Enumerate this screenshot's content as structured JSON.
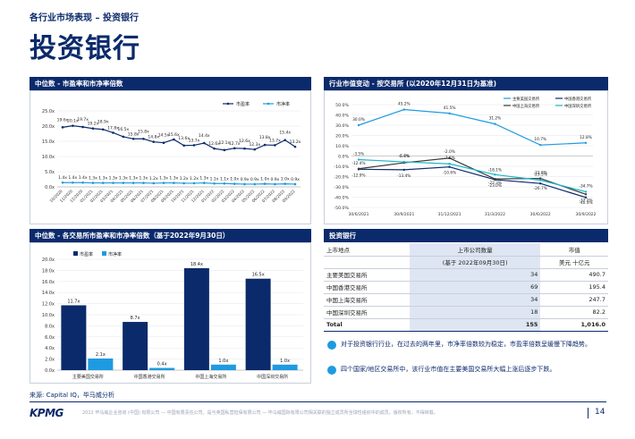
{
  "header": {
    "subtitle": "各行业市场表现 – 投资银行",
    "title": "投资银行"
  },
  "colors": {
    "navy": "#0b2a6b",
    "blue": "#1e9be0",
    "light": "#dfe6f3"
  },
  "panels": {
    "pe_pb_trend": "中位数 - 市盈率和市净率倍数",
    "market_cap_change": "行业市值变动 - 按交易所 (以2020年12月31日为基准)",
    "exchange_pe_pb": "中位数 - 各交易所市盈率和市净率倍数（基于2022年9月30日）",
    "ib_table": "投资银行"
  },
  "chart_data": [
    {
      "type": "line",
      "legend": [
        "市盈率",
        "市净率"
      ],
      "x": [
        "10/2020",
        "11/2020",
        "12/2020",
        "01/2021",
        "02/2021",
        "03/2021",
        "04/2021",
        "05/2021",
        "06/2021",
        "07/2021",
        "08/2021",
        "09/2021",
        "10/2021",
        "11/2021",
        "12/2021",
        "01/2022",
        "02/2022",
        "03/2022",
        "04/2022",
        "05/2022",
        "06/2022",
        "07/2022",
        "08/2022",
        "09/2022"
      ],
      "series": [
        {
          "name": "市盈率",
          "values": [
            19.6,
            20.1,
            19.7,
            19.2,
            18.9,
            17.8,
            16.5,
            15.8,
            15.8,
            14.8,
            14.5,
            15.6,
            13.6,
            13.7,
            14.4,
            12.6,
            12.1,
            12.7,
            12.6,
            12.3,
            13.8,
            13.7,
            15.4,
            13.2
          ],
          "labels": [
            "19.6x",
            "20.1x",
            "19.7x",
            "19.2x",
            "18.9x",
            "17.8x",
            "16.5x",
            "15.8x",
            "15.8x",
            "14.8x",
            "14.5x",
            "15.6x",
            "13.6x",
            "13.7x",
            "14.4x",
            "12.6x",
            "12.1x",
            "12.7x",
            "12.6x",
            "12.3x",
            "13.8x",
            "13.7x",
            "15.4x",
            "13.2x"
          ]
        },
        {
          "name": "市净率",
          "values": [
            1.4,
            1.4,
            1.4,
            1.3,
            1.3,
            1.3,
            1.3,
            1.3,
            1.3,
            1.2,
            1.3,
            1.3,
            1.2,
            1.2,
            1.3,
            1.1,
            1.1,
            1.0,
            0.9,
            0.9,
            1.0,
            0.9,
            1.0,
            0.9
          ],
          "labels": [
            "1.4x",
            "1.4x",
            "1.4x",
            "1.3x",
            "1.3x",
            "1.3x",
            "1.3x",
            "1.3x",
            "1.3x",
            "1.2x",
            "1.3x",
            "1.3x",
            "1.2x",
            "1.2x",
            "1.3x",
            "1.1x",
            "1.1x",
            "1.0x",
            "0.9x",
            "0.9x",
            "1.0x",
            "0.9x",
            "1.0x",
            "0.9x"
          ]
        }
      ],
      "ylim": [
        0,
        25
      ],
      "yticks": [
        "0.0x",
        "5.0x",
        "10.0x",
        "15.0x",
        "20.0x",
        "25.0x"
      ]
    },
    {
      "type": "line",
      "legend": [
        "主要美国交易所",
        "中国香港交易所",
        "中国上海交易所",
        "中国深圳交易所"
      ],
      "x": [
        "30/6/2021",
        "30/9/2021",
        "31/12/2021",
        "31/3/2022",
        "30/6/2022",
        "30/9/2022"
      ],
      "series": [
        {
          "name": "主要美国交易所",
          "values": [
            30.0,
            45.2,
            41.5,
            31.2,
            10.7,
            12.8
          ],
          "labels": [
            "30.0%",
            "45.2%",
            "41.5%",
            "31.2%",
            "10.7%",
            "12.8%"
          ]
        },
        {
          "name": "中国香港交易所",
          "values": [
            -12.9,
            -13.4,
            -10.6,
            -23.0,
            -26.7,
            -40.3
          ],
          "labels": [
            "-12.9%",
            "-13.4%",
            "-10.6%",
            "-23.0%",
            "-26.7%",
            "-40.3%"
          ]
        },
        {
          "name": "中国上海交易所",
          "values": [
            -12.4,
            -6.6,
            -2.0,
            -22.3,
            -21.8,
            -37.2
          ],
          "labels": [
            "-12.4%",
            "-6.6%",
            "-2.0%",
            "-22.3%",
            "-21.8%",
            "-37.2%"
          ]
        },
        {
          "name": "中国深圳交易所",
          "values": [
            -3.5,
            -5.7,
            -7.6,
            -18.1,
            -23.5,
            -34.7
          ],
          "labels": [
            "-3.5%",
            "-5.7%",
            "-7.6%",
            "-18.1%",
            "-23.5%",
            "-34.7%"
          ]
        }
      ],
      "ylim": [
        -50,
        50
      ],
      "yticks": [
        "-50.0%",
        "-40.0%",
        "-30.0%",
        "-20.0%",
        "-10.0%",
        "0.0%",
        "10.0%",
        "20.0%",
        "30.0%",
        "40.0%",
        "50.0%"
      ]
    },
    {
      "type": "bar",
      "legend": [
        "市盈率",
        "市净率"
      ],
      "categories": [
        "主要美国交易所",
        "中国香港交易所",
        "中国上海交易所",
        "中国深圳交易所"
      ],
      "series": [
        {
          "name": "市盈率",
          "values": [
            11.7,
            8.7,
            18.4,
            16.5
          ],
          "labels": [
            "11.7x",
            "8.7x",
            "18.4x",
            "16.5x"
          ]
        },
        {
          "name": "市净率",
          "values": [
            2.1,
            0.4,
            1.0,
            1.0
          ],
          "labels": [
            "2.1x",
            "0.4x",
            "1.0x",
            "1.0x"
          ]
        }
      ],
      "ylim": [
        0,
        20
      ],
      "yticks": [
        "0.0x",
        "2.0x",
        "4.0x",
        "6.0x",
        "8.0x",
        "10.0x",
        "12.0x",
        "14.0x",
        "16.0x",
        "18.0x",
        "20.0x"
      ]
    }
  ],
  "table": {
    "col1": "上市地点",
    "col2": "上市公司数量",
    "col3": "市值",
    "col2_sub": "(基于 2022年09月30日)",
    "col3_sub": "美元 十亿元",
    "rows": [
      {
        "name": "主要美国交易所",
        "count": "34",
        "value": "490.7"
      },
      {
        "name": "中国香港交易所",
        "count": "69",
        "value": "195.4"
      },
      {
        "name": "中国上海交易所",
        "count": "34",
        "value": "247.7"
      },
      {
        "name": "中国深圳交易所",
        "count": "18",
        "value": "82.2"
      }
    ],
    "total": {
      "name": "Total",
      "count": "155",
      "value": "1,016.0"
    }
  },
  "notes": [
    "对于投资银行行业，在过去的两年里，市净率倍数较为稳定，市盈率倍数呈缓慢下降趋势。",
    "四个国家/地区交易所中，该行业市值在主要美国交易所大幅上涨后逐步下跌。"
  ],
  "footer": {
    "source": "来源: Capital IQ，毕马威分析",
    "logo": "KPMG",
    "legal": "2022 毕马威企业咨询 (中国) 有限公司 — 中国有限责任公司，是与英国私营担保有限公司 — 毕马威国际有限公司相关联的独立成员所全球性组织中的成员。版权所有，不得转载。",
    "page": "14"
  }
}
